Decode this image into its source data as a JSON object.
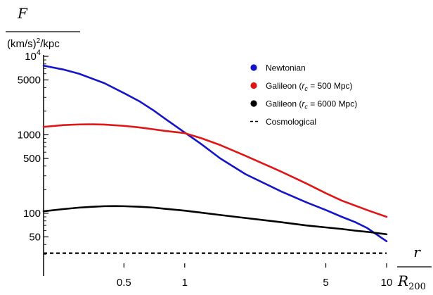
{
  "chart_data": {
    "type": "line",
    "xscale": "log",
    "yscale": "log",
    "xlim": [
      0.2,
      10
    ],
    "ylim": [
      25,
      10000
    ],
    "grid": false,
    "legend_position": "top-right",
    "ylabel": {
      "symbol": "F",
      "unit_base": "(km/s)",
      "unit_exp": "2",
      "unit_tail": "/kpc"
    },
    "xlabel": {
      "symbol": "r",
      "denominator_symbol": "R",
      "denominator_subscript": "200"
    },
    "x_ticks": [
      {
        "value": 0.5,
        "label": "0.5"
      },
      {
        "value": 1,
        "label": "1"
      },
      {
        "value": 5,
        "label": "5"
      },
      {
        "value": 10,
        "label": "10"
      }
    ],
    "y_ticks": [
      {
        "value": 10000,
        "label_base": "10",
        "label_exp": "4"
      },
      {
        "value": 5000,
        "label": "5000"
      },
      {
        "value": 1000,
        "label": "1000"
      },
      {
        "value": 500,
        "label": "500"
      },
      {
        "value": 100,
        "label": "100"
      },
      {
        "value": 50,
        "label": "50"
      }
    ],
    "series": [
      {
        "name": "Newtonian",
        "color": "#1515c8",
        "style": "solid",
        "x": [
          0.2,
          0.25,
          0.3,
          0.4,
          0.5,
          0.6,
          0.7,
          0.8,
          1.0,
          1.2,
          1.5,
          2,
          3,
          4,
          5,
          6,
          7,
          8,
          10
        ],
        "y": [
          7600,
          6800,
          6000,
          4550,
          3400,
          2650,
          2050,
          1600,
          1070,
          770,
          500,
          315,
          190,
          138,
          110,
          90,
          77,
          65,
          44
        ]
      },
      {
        "name": "Galileon (r_c = 500 Mpc)",
        "label_pre": "Galileon (",
        "label_sub_sym": "r",
        "label_sub": "c",
        "label_post": " = 500 Mpc)",
        "color": "#e01616",
        "style": "solid",
        "x": [
          0.2,
          0.25,
          0.3,
          0.35,
          0.4,
          0.5,
          0.6,
          0.7,
          0.8,
          1.0,
          1.2,
          1.5,
          2,
          3,
          4,
          5,
          6,
          7,
          8,
          10
        ],
        "y": [
          1260,
          1330,
          1355,
          1360,
          1350,
          1300,
          1240,
          1175,
          1120,
          1050,
          910,
          740,
          540,
          340,
          240,
          180,
          145,
          125,
          110,
          90
        ]
      },
      {
        "name": "Galileon (r_c = 6000 Mpc)",
        "label_pre": "Galileon (",
        "label_sub_sym": "r",
        "label_sub": "c",
        "label_post": " = 6000 Mpc)",
        "color": "#000000",
        "style": "solid",
        "x": [
          0.2,
          0.25,
          0.3,
          0.35,
          0.4,
          0.45,
          0.5,
          0.6,
          0.7,
          0.8,
          1.0,
          1.2,
          1.5,
          2,
          3,
          4,
          5,
          6,
          7,
          8,
          10
        ],
        "y": [
          106,
          113,
          118,
          121,
          123,
          123.5,
          123,
          121,
          118,
          114,
          108,
          102,
          95,
          87,
          77,
          70,
          66,
          63,
          60,
          58,
          54
        ]
      },
      {
        "name": "Cosmological",
        "color": "#000000",
        "style": "dashed",
        "x": [
          0.2,
          10
        ],
        "y": [
          31,
          31
        ]
      }
    ]
  }
}
